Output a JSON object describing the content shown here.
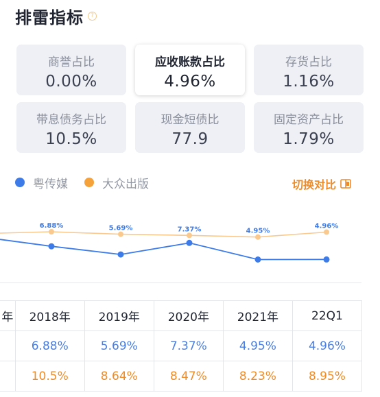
{
  "header": {
    "title": "排雷指标",
    "help_icon": "question-circle-icon"
  },
  "metrics": [
    {
      "label": "商誉占比",
      "value": "0.00%",
      "active": false
    },
    {
      "label": "应收账款占比",
      "value": "4.96%",
      "active": true
    },
    {
      "label": "存货占比",
      "value": "1.16%",
      "active": false
    },
    {
      "label": "带息债务占比",
      "value": "10.5%",
      "active": false
    },
    {
      "label": "现金短债比",
      "value": "77.9",
      "active": false
    },
    {
      "label": "固定资产占比",
      "value": "1.79%",
      "active": false
    }
  ],
  "legend": {
    "items": [
      {
        "name": "粤传媒",
        "color": "#3d7be8"
      },
      {
        "name": "大众出版",
        "color": "#f5a23a"
      }
    ],
    "switch_label": "切换对比",
    "switch_icon": "compare-toggle-icon"
  },
  "chart_data": {
    "type": "line",
    "categories": [
      "2018年",
      "2019年",
      "2020年",
      "2021年",
      "22Q1"
    ],
    "series": [
      {
        "name": "粤传媒",
        "values": [
          6.88,
          5.69,
          7.37,
          4.95,
          4.96
        ],
        "color": "#3d7be8",
        "labels": [
          "6.88%",
          "5.69%",
          "7.37%",
          "4.95%",
          "4.96%"
        ]
      },
      {
        "name": "大众出版",
        "values": [
          10.5,
          8.64,
          8.47,
          8.23,
          8.95
        ],
        "color": "#f5a23a"
      }
    ]
  },
  "table": {
    "edge_header": "年",
    "headers": [
      "2018年",
      "2019年",
      "2020年",
      "2021年",
      "22Q1"
    ],
    "rows": [
      {
        "edge": "",
        "cells": [
          "6.88%",
          "5.69%",
          "7.37%",
          "4.95%",
          "4.96%"
        ]
      },
      {
        "edge": "",
        "cells": [
          "10.5%",
          "8.64%",
          "8.47%",
          "8.23%",
          "8.95%"
        ]
      }
    ]
  }
}
